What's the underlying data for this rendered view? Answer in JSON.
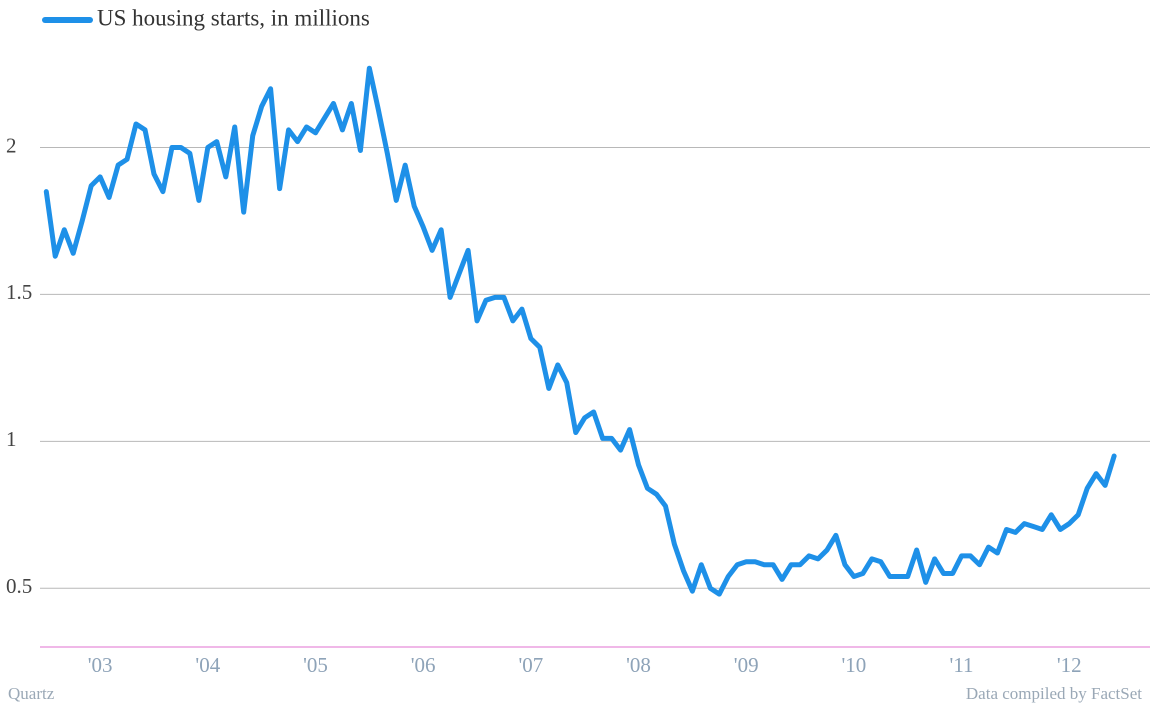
{
  "chart_data": {
    "type": "line",
    "series": [
      {
        "name": "US housing starts, in millions",
        "color": "#1e90e8",
        "values": [
          1.85,
          1.63,
          1.72,
          1.64,
          1.75,
          1.87,
          1.9,
          1.83,
          1.94,
          1.96,
          2.08,
          2.06,
          1.91,
          1.85,
          2.0,
          2.0,
          1.98,
          1.82,
          2.0,
          2.02,
          1.9,
          2.07,
          1.78,
          2.04,
          2.14,
          2.2,
          1.86,
          2.06,
          2.02,
          2.07,
          2.05,
          2.1,
          2.15,
          2.06,
          2.15,
          1.99,
          2.27,
          2.13,
          1.98,
          1.82,
          1.94,
          1.8,
          1.73,
          1.65,
          1.72,
          1.49,
          1.57,
          1.65,
          1.41,
          1.48,
          1.49,
          1.49,
          1.41,
          1.45,
          1.35,
          1.32,
          1.18,
          1.26,
          1.2,
          1.03,
          1.08,
          1.1,
          1.01,
          1.01,
          0.97,
          1.04,
          0.92,
          0.84,
          0.82,
          0.78,
          0.65,
          0.56,
          0.49,
          0.58,
          0.5,
          0.48,
          0.54,
          0.58,
          0.59,
          0.59,
          0.58,
          0.58,
          0.53,
          0.58,
          0.58,
          0.61,
          0.6,
          0.63,
          0.68,
          0.58,
          0.54,
          0.55,
          0.6,
          0.59,
          0.54,
          0.54,
          0.54,
          0.63,
          0.52,
          0.6,
          0.55,
          0.55,
          0.61,
          0.61,
          0.58,
          0.64,
          0.62,
          0.7,
          0.69,
          0.72,
          0.71,
          0.7,
          0.75,
          0.7,
          0.72,
          0.75,
          0.84,
          0.89,
          0.85,
          0.95
        ]
      }
    ],
    "x": [
      2003,
      2003.083,
      2003.167,
      2003.25,
      2003.333,
      2003.417,
      2003.5,
      2003.583,
      2003.667,
      2003.75,
      2003.833,
      2003.917,
      2004,
      2004.083,
      2004.167,
      2004.25,
      2004.333,
      2004.417,
      2004.5,
      2004.583,
      2004.667,
      2004.75,
      2004.833,
      2004.917,
      2005,
      2005.083,
      2005.167,
      2005.25,
      2005.333,
      2005.417,
      2005.5,
      2005.583,
      2005.667,
      2005.75,
      2005.833,
      2005.917,
      2006,
      2006.083,
      2006.167,
      2006.25,
      2006.333,
      2006.417,
      2006.5,
      2006.583,
      2006.667,
      2006.75,
      2006.833,
      2006.917,
      2007,
      2007.083,
      2007.167,
      2007.25,
      2007.333,
      2007.417,
      2007.5,
      2007.583,
      2007.667,
      2007.75,
      2007.833,
      2007.917,
      2008,
      2008.083,
      2008.167,
      2008.25,
      2008.333,
      2008.417,
      2008.5,
      2008.583,
      2008.667,
      2008.75,
      2008.833,
      2008.917,
      2009,
      2009.083,
      2009.167,
      2009.25,
      2009.333,
      2009.417,
      2009.5,
      2009.583,
      2009.667,
      2009.75,
      2009.833,
      2009.917,
      2010,
      2010.083,
      2010.167,
      2010.25,
      2010.333,
      2010.417,
      2010.5,
      2010.583,
      2010.667,
      2010.75,
      2010.833,
      2010.917,
      2011,
      2011.083,
      2011.167,
      2011.25,
      2011.333,
      2011.417,
      2011.5,
      2011.583,
      2011.667,
      2011.75,
      2011.833,
      2011.917,
      2012,
      2012.083,
      2012.167,
      2012.25,
      2012.333,
      2012.417,
      2012.5,
      2012.583,
      2012.667,
      2012.75,
      2012.833,
      2012.917
    ],
    "xlim": [
      2002.57,
      2013.25
    ],
    "xticks": [
      {
        "value": 2003.5,
        "label": "'03"
      },
      {
        "value": 2004.5,
        "label": "'04"
      },
      {
        "value": 2005.5,
        "label": "'05"
      },
      {
        "value": 2006.5,
        "label": "'06"
      },
      {
        "value": 2007.5,
        "label": "'07"
      },
      {
        "value": 2008.5,
        "label": "'08"
      },
      {
        "value": 2009.5,
        "label": "'09"
      },
      {
        "value": 2010.5,
        "label": "'10"
      },
      {
        "value": 2011.5,
        "label": "'11"
      },
      {
        "value": 2012.5,
        "label": "'12"
      }
    ],
    "ylim": [
      0.3,
      2.4
    ],
    "yticks": [
      0.5,
      1,
      1.5,
      2
    ],
    "grid": true,
    "source": "Data compiled by FactSet",
    "credit": "Quartz"
  }
}
